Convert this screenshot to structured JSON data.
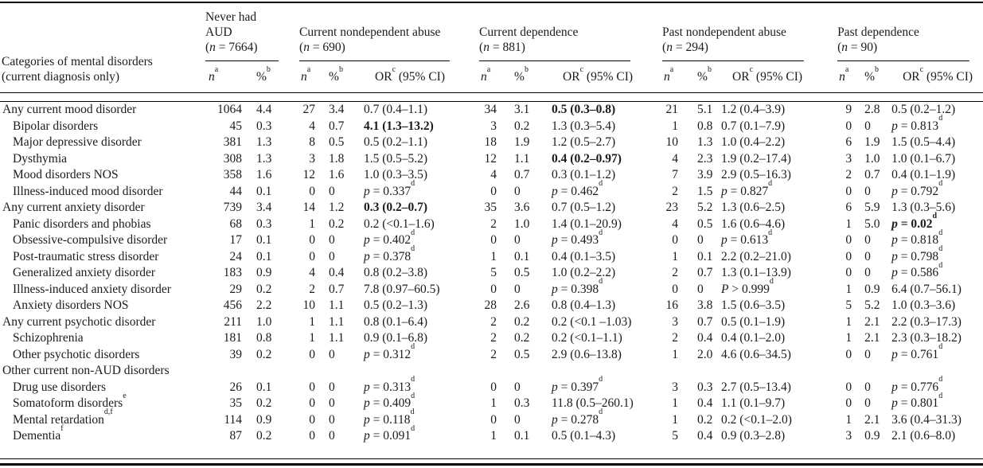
{
  "table": {
    "stub_header": [
      "Categories of mental disorders",
      "(current diagnosis only)"
    ],
    "col_subheaders": {
      "n": {
        "label": "n",
        "sup": "a",
        "italic": true
      },
      "pct": {
        "label": "%",
        "sup": "b"
      },
      "or": {
        "label": "OR",
        "sup": "c",
        "suffix": " (95% CI)"
      }
    },
    "groups": [
      {
        "title_lines": [
          "Never had",
          "AUD"
        ],
        "n_value": "7664",
        "has_or": false
      },
      {
        "title_lines": [
          "Current nondependent abuse"
        ],
        "n_value": "690",
        "has_or": true
      },
      {
        "title_lines": [
          "Current dependence"
        ],
        "n_value": "881",
        "has_or": true
      },
      {
        "title_lines": [
          "Past nondependent abuse"
        ],
        "n_value": "294",
        "has_or": true
      },
      {
        "title_lines": [
          "Past dependence"
        ],
        "n_value": "90",
        "has_or": true
      }
    ],
    "rows": [
      {
        "label": "Any current mood disorder",
        "indent": 0,
        "groups": [
          {
            "n": "1064",
            "pct": "4.4"
          },
          {
            "n": "27",
            "pct": "3.4",
            "or": {
              "text": "0.7 (0.4–1.1)"
            }
          },
          {
            "n": "34",
            "pct": "3.1",
            "or": {
              "text": "0.5 (0.3–0.8)",
              "bold": true
            }
          },
          {
            "n": "21",
            "pct": "5.1",
            "or": {
              "text": "1.2 (0.4–3.9)"
            }
          },
          {
            "n": "9",
            "pct": "2.8",
            "or": {
              "text": "0.5 (0.2–1.2)"
            }
          }
        ]
      },
      {
        "label": "Bipolar disorders",
        "indent": 1,
        "groups": [
          {
            "n": "45",
            "pct": "0.3"
          },
          {
            "n": "4",
            "pct": "0.7",
            "or": {
              "text": "4.1 (1.3–13.2)",
              "bold": true
            }
          },
          {
            "n": "3",
            "pct": "0.2",
            "or": {
              "text": "1.3 (0.3–5.4)"
            }
          },
          {
            "n": "1",
            "pct": "0.8",
            "or": {
              "text": "0.7 (0.1–7.9)"
            }
          },
          {
            "n": "0",
            "pct": "0",
            "or": {
              "p": "p",
              "text": " = 0.813",
              "sup": "d"
            }
          }
        ]
      },
      {
        "label": "Major depressive disorder",
        "indent": 1,
        "groups": [
          {
            "n": "381",
            "pct": "1.3"
          },
          {
            "n": "8",
            "pct": "0.5",
            "or": {
              "text": "0.5 (0.2–1.1)"
            }
          },
          {
            "n": "18",
            "pct": "1.9",
            "or": {
              "text": "1.2 (0.5–2.7)"
            }
          },
          {
            "n": "10",
            "pct": "1.3",
            "or": {
              "text": "1.0 (0.4–2.2)"
            }
          },
          {
            "n": "6",
            "pct": "1.9",
            "or": {
              "text": "1.5 (0.5–4.4)"
            }
          }
        ]
      },
      {
        "label": "Dysthymia",
        "indent": 1,
        "groups": [
          {
            "n": "308",
            "pct": "1.3"
          },
          {
            "n": "3",
            "pct": "1.8",
            "or": {
              "text": "1.5 (0.5–5.2)"
            }
          },
          {
            "n": "12",
            "pct": "1.1",
            "or": {
              "text": "0.4 (0.2–0.97)",
              "bold": true
            }
          },
          {
            "n": "4",
            "pct": "2.3",
            "or": {
              "text": "1.9 (0.2–17.4)"
            }
          },
          {
            "n": "3",
            "pct": "1.0",
            "or": {
              "text": "1.0 (0.1–6.7)"
            }
          }
        ]
      },
      {
        "label": "Mood disorders NOS",
        "indent": 1,
        "groups": [
          {
            "n": "358",
            "pct": "1.6"
          },
          {
            "n": "12",
            "pct": "1.6",
            "or": {
              "text": "1.0 (0.3–3.5)"
            }
          },
          {
            "n": "4",
            "pct": "0.7",
            "or": {
              "text": "0.3 (0.1–1.2)"
            }
          },
          {
            "n": "7",
            "pct": "3.9",
            "or": {
              "text": "2.9 (0.5–16.3)"
            }
          },
          {
            "n": "2",
            "pct": "0.7",
            "or": {
              "text": "0.4 (0.1–1.9)"
            }
          }
        ]
      },
      {
        "label": "Illness-induced mood disorder",
        "indent": 1,
        "groups": [
          {
            "n": "44",
            "pct": "0.1"
          },
          {
            "n": "0",
            "pct": "0",
            "or": {
              "p": "p",
              "text": " = 0.337",
              "sup": "d"
            }
          },
          {
            "n": "0",
            "pct": "0",
            "or": {
              "p": "p",
              "text": " = 0.462",
              "sup": "d"
            }
          },
          {
            "n": "2",
            "pct": "1.5",
            "or": {
              "p": "p",
              "text": " = 0.827",
              "sup": "d"
            }
          },
          {
            "n": "0",
            "pct": "0",
            "or": {
              "p": "p",
              "text": " = 0.792",
              "sup": "d"
            }
          }
        ]
      },
      {
        "label": "Any current anxiety disorder",
        "indent": 0,
        "groups": [
          {
            "n": "739",
            "pct": "3.4"
          },
          {
            "n": "14",
            "pct": "1.2",
            "or": {
              "text": "0.3 (0.2–0.7)",
              "bold": true
            }
          },
          {
            "n": "35",
            "pct": "3.6",
            "or": {
              "text": "0.7 (0.5–1.2)"
            }
          },
          {
            "n": "23",
            "pct": "5.2",
            "or": {
              "text": "1.3 (0.6–2.5)"
            }
          },
          {
            "n": "6",
            "pct": "5.9",
            "or": {
              "text": "1.3 (0.3–5.6)"
            }
          }
        ]
      },
      {
        "label": "Panic disorders and phobias",
        "indent": 1,
        "groups": [
          {
            "n": "68",
            "pct": "0.3"
          },
          {
            "n": "1",
            "pct": "0.2",
            "or": {
              "text": "0.2 (<0.1–1.6)"
            }
          },
          {
            "n": "2",
            "pct": "1.0",
            "or": {
              "text": "1.4 (0.1–20.9)"
            }
          },
          {
            "n": "4",
            "pct": "0.5",
            "or": {
              "text": "1.6 (0.6–4.6)"
            }
          },
          {
            "n": "1",
            "pct": "5.0",
            "or": {
              "p": "p",
              "text": " = 0.02",
              "sup": "d",
              "bold": true
            }
          }
        ]
      },
      {
        "label": "Obsessive-compulsive disorder",
        "indent": 1,
        "groups": [
          {
            "n": "17",
            "pct": "0.1"
          },
          {
            "n": "0",
            "pct": "0",
            "or": {
              "p": "p",
              "text": " = 0.402",
              "sup": "d"
            }
          },
          {
            "n": "0",
            "pct": "0",
            "or": {
              "p": "p",
              "text": " = 0.493",
              "sup": "d"
            }
          },
          {
            "n": "0",
            "pct": "0",
            "or": {
              "p": "p",
              "text": " = 0.613",
              "sup": "d"
            }
          },
          {
            "n": "0",
            "pct": "0",
            "or": {
              "p": "p",
              "text": " = 0.818",
              "sup": "d"
            }
          }
        ]
      },
      {
        "label": "Post-traumatic stress disorder",
        "indent": 1,
        "groups": [
          {
            "n": "24",
            "pct": "0.1"
          },
          {
            "n": "0",
            "pct": "0",
            "or": {
              "p": "p",
              "text": " = 0.378",
              "sup": "d"
            }
          },
          {
            "n": "1",
            "pct": "0.1",
            "or": {
              "text": "0.4 (0.1–3.5)"
            }
          },
          {
            "n": "1",
            "pct": "0.1",
            "or": {
              "text": "2.2 (0.2–21.0)"
            }
          },
          {
            "n": "0",
            "pct": "0",
            "or": {
              "p": "p",
              "text": " = 0.798",
              "sup": "d"
            }
          }
        ]
      },
      {
        "label": "Generalized anxiety disorder",
        "indent": 1,
        "groups": [
          {
            "n": "183",
            "pct": "0.9"
          },
          {
            "n": "4",
            "pct": "0.4",
            "or": {
              "text": "0.8 (0.2–3.8)"
            }
          },
          {
            "n": "5",
            "pct": "0.5",
            "or": {
              "text": "1.0 (0.2–2.2)"
            }
          },
          {
            "n": "2",
            "pct": "0.7",
            "or": {
              "text": "1.3 (0.1–13.9)"
            }
          },
          {
            "n": "0",
            "pct": "0",
            "or": {
              "p": "p",
              "text": " = 0.586",
              "sup": "d"
            }
          }
        ]
      },
      {
        "label": "Illness-induced anxiety disorder",
        "indent": 1,
        "groups": [
          {
            "n": "29",
            "pct": "0.2"
          },
          {
            "n": "2",
            "pct": "0.7",
            "or": {
              "text": "7.8 (0.97–60.5)"
            }
          },
          {
            "n": "0",
            "pct": "0",
            "or": {
              "p": "p",
              "text": " = 0.398",
              "sup": "d"
            }
          },
          {
            "n": "0",
            "pct": "0",
            "or": {
              "p": "P",
              "text": " > 0.999",
              "sup": "d"
            }
          },
          {
            "n": "1",
            "pct": "0.9",
            "or": {
              "text": "6.4 (0.7–56.1)"
            }
          }
        ]
      },
      {
        "label": "Anxiety disorders NOS",
        "indent": 1,
        "groups": [
          {
            "n": "456",
            "pct": "2.2"
          },
          {
            "n": "10",
            "pct": "1.1",
            "or": {
              "text": "0.5 (0.2–1.3)"
            }
          },
          {
            "n": "28",
            "pct": "2.6",
            "or": {
              "text": "0.8 (0.4–1.3)"
            }
          },
          {
            "n": "16",
            "pct": "3.8",
            "or": {
              "text": "1.5 (0.6–3.5)"
            }
          },
          {
            "n": "5",
            "pct": "5.2",
            "or": {
              "text": "1.0 (0.3–3.6)"
            }
          }
        ]
      },
      {
        "label": "Any current psychotic disorder",
        "indent": 0,
        "groups": [
          {
            "n": "211",
            "pct": "1.0"
          },
          {
            "n": "1",
            "pct": "1.1",
            "or": {
              "text": "0.8 (0.1–6.4)"
            }
          },
          {
            "n": "2",
            "pct": "0.2",
            "or": {
              "text": "0.2 (<0.1 –1.03)"
            }
          },
          {
            "n": "3",
            "pct": "0.7",
            "or": {
              "text": "0.5 (0.1–1.9)"
            }
          },
          {
            "n": "1",
            "pct": "2.1",
            "or": {
              "text": "2.2 (0.3–17.3)"
            }
          }
        ]
      },
      {
        "label": "Schizophrenia",
        "indent": 1,
        "groups": [
          {
            "n": "181",
            "pct": "0.8"
          },
          {
            "n": "1",
            "pct": "1.1",
            "or": {
              "text": "0.9 (0.1–6.8)"
            }
          },
          {
            "n": "2",
            "pct": "0.2",
            "or": {
              "text": "0.2 (<0.1–1.1)"
            }
          },
          {
            "n": "2",
            "pct": "0.4",
            "or": {
              "text": "0.4 (0.1–2.0)"
            }
          },
          {
            "n": "1",
            "pct": "2.1",
            "or": {
              "text": "2.3 (0.3–18.2)"
            }
          }
        ]
      },
      {
        "label": "Other psychotic disorders",
        "indent": 1,
        "groups": [
          {
            "n": "39",
            "pct": "0.2"
          },
          {
            "n": "0",
            "pct": "0",
            "or": {
              "p": "p",
              "text": " = 0.312",
              "sup": "d"
            }
          },
          {
            "n": "2",
            "pct": "0.5",
            "or": {
              "text": "2.9 (0.6–13.8)"
            }
          },
          {
            "n": "1",
            "pct": "2.0",
            "or": {
              "text": "4.6 (0.6–34.5)"
            }
          },
          {
            "n": "0",
            "pct": "0",
            "or": {
              "p": "p",
              "text": " = 0.761",
              "sup": "d"
            }
          }
        ]
      },
      {
        "label": "Other current non-AUD disorders",
        "indent": 0,
        "section": true,
        "groups": [
          {},
          {},
          {},
          {},
          {}
        ]
      },
      {
        "label": "Drug use disorders",
        "indent": 1,
        "groups": [
          {
            "n": "26",
            "pct": "0.1"
          },
          {
            "n": "0",
            "pct": "0",
            "or": {
              "p": "p",
              "text": " = 0.313",
              "sup": "d"
            }
          },
          {
            "n": "0",
            "pct": "0",
            "or": {
              "p": "p",
              "text": " = 0.397",
              "sup": "d"
            }
          },
          {
            "n": "3",
            "pct": "0.3",
            "or": {
              "text": "2.7 (0.5–13.4)"
            }
          },
          {
            "n": "0",
            "pct": "0",
            "or": {
              "p": "p",
              "text": " = 0.776",
              "sup": "d"
            }
          }
        ]
      },
      {
        "label": "Somatoform disorders",
        "label_sup": "e",
        "indent": 1,
        "groups": [
          {
            "n": "35",
            "pct": "0.2"
          },
          {
            "n": "0",
            "pct": "0",
            "or": {
              "p": "p",
              "text": " = 0.409",
              "sup": "d"
            }
          },
          {
            "n": "1",
            "pct": "0.3",
            "or": {
              "text": "11.8 (0.5–260.1)"
            }
          },
          {
            "n": "1",
            "pct": "0.4",
            "or": {
              "text": "1.1 (0.1–9.7)"
            }
          },
          {
            "n": "0",
            "pct": "0",
            "or": {
              "p": "p",
              "text": " = 0.801",
              "sup": "d"
            }
          }
        ]
      },
      {
        "label": "Mental retardation",
        "label_sup": "d,f",
        "indent": 1,
        "groups": [
          {
            "n": "114",
            "pct": "0.9"
          },
          {
            "n": "0",
            "pct": "0",
            "or": {
              "p": "p",
              "text": " = 0.118",
              "sup": "d"
            }
          },
          {
            "n": "0",
            "pct": "0",
            "or": {
              "p": "p",
              "text": " = 0.278",
              "sup": "d"
            }
          },
          {
            "n": "1",
            "pct": "0.2",
            "or": {
              "text": "0.2 (<0.1–2.0)"
            }
          },
          {
            "n": "1",
            "pct": "2.1",
            "or": {
              "text": "3.6 (0.4–31.3)"
            }
          }
        ]
      },
      {
        "label": "Dementia",
        "label_sup": "f",
        "indent": 1,
        "groups": [
          {
            "n": "87",
            "pct": "0.2"
          },
          {
            "n": "0",
            "pct": "0",
            "or": {
              "p": "p",
              "text": " = 0.091",
              "sup": "d"
            }
          },
          {
            "n": "1",
            "pct": "0.1",
            "or": {
              "text": "0.5 (0.1–4.3)"
            }
          },
          {
            "n": "5",
            "pct": "0.4",
            "or": {
              "text": "0.9 (0.3–2.8)"
            }
          },
          {
            "n": "3",
            "pct": "0.9",
            "or": {
              "text": "2.1 (0.6–8.0)"
            }
          }
        ]
      }
    ]
  }
}
